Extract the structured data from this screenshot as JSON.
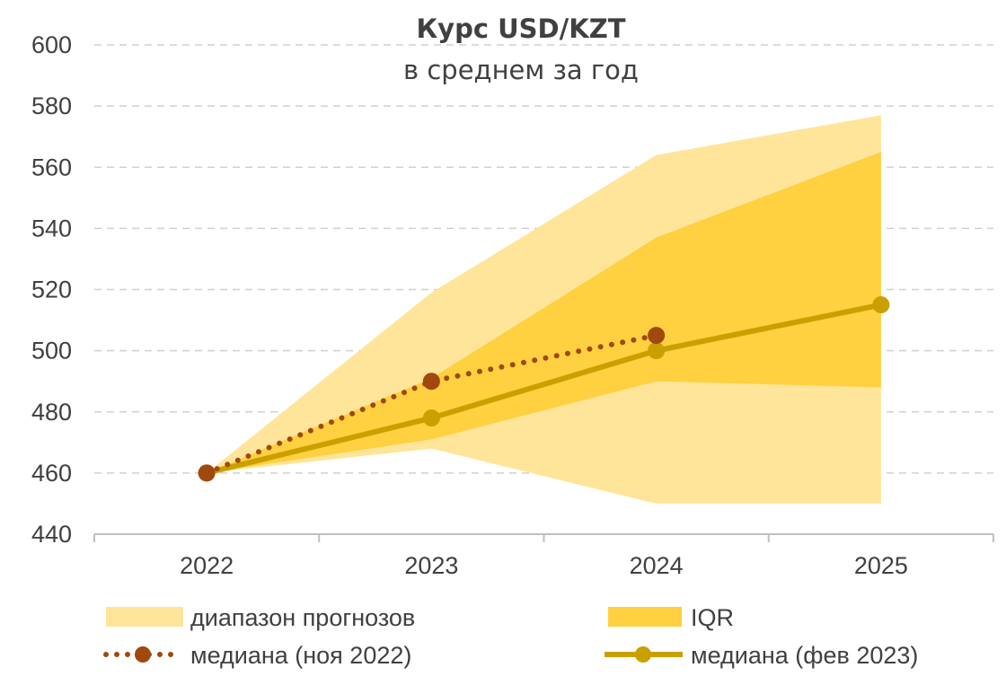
{
  "chart_data": {
    "type": "line",
    "title": "Курс USD/KZT",
    "subtitle": "в среднем за год",
    "categories": [
      "2022",
      "2023",
      "2024",
      "2025"
    ],
    "ylim": [
      440,
      600
    ],
    "yticks": [
      "440",
      "460",
      "480",
      "500",
      "520",
      "540",
      "560",
      "580",
      "600"
    ],
    "grid": true,
    "legend_position": "bottom",
    "bands": [
      {
        "name": "диапазон прогнозов",
        "color": "#FFE599",
        "lower": [
          460,
          468,
          450,
          450
        ],
        "upper": [
          460,
          519,
          564,
          577
        ]
      },
      {
        "name": "IQR",
        "color": "#FFD03F",
        "lower": [
          460,
          471,
          490,
          488
        ],
        "upper": [
          460,
          491,
          537,
          565
        ]
      }
    ],
    "series": [
      {
        "name": "медиана (ноя 2022)",
        "color": "#A0480E",
        "style": "dotted",
        "values": [
          460,
          490,
          505,
          null
        ]
      },
      {
        "name": "медиана (фев 2023)",
        "color": "#C9A000",
        "style": "solid",
        "values": [
          460,
          478,
          500,
          515
        ]
      }
    ]
  }
}
